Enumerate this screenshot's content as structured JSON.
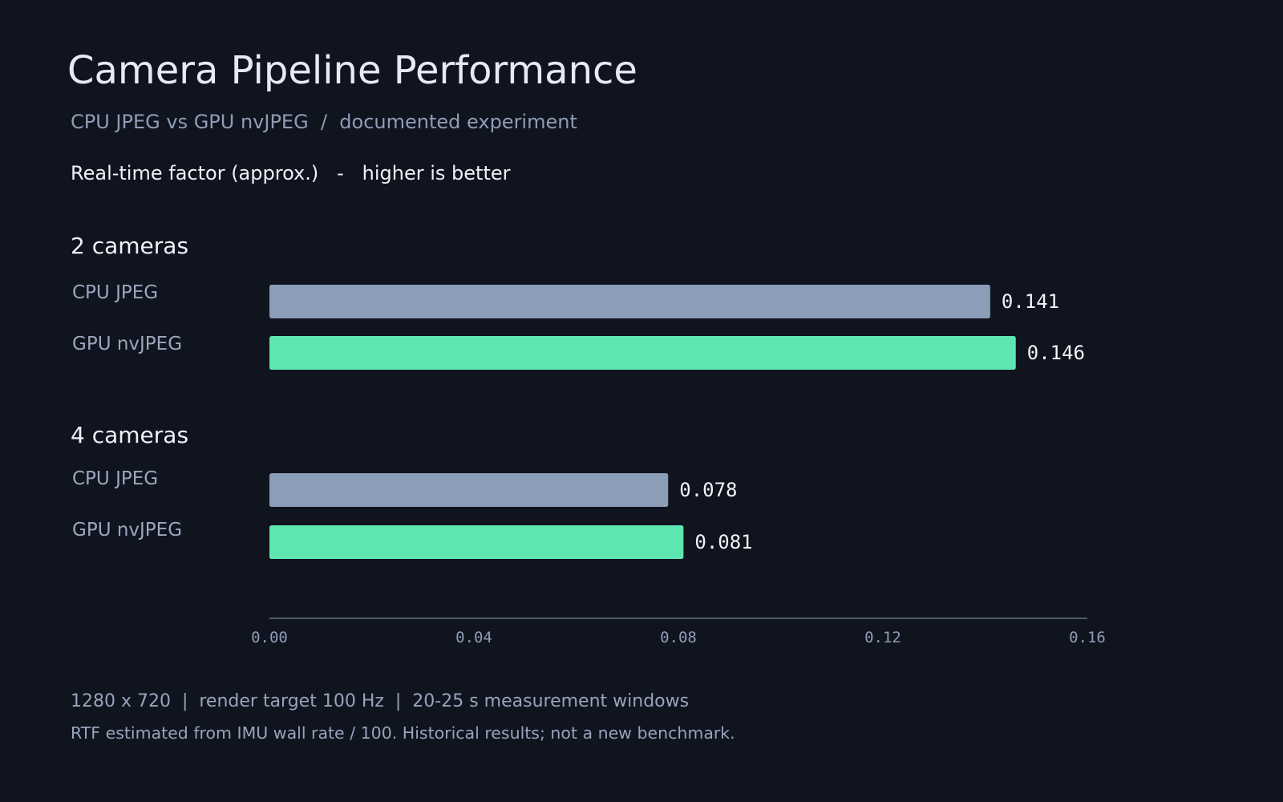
{
  "title": "Camera Pipeline Performance",
  "subtitle": "CPU JPEG vs GPU nvJPEG  /  documented experiment",
  "metric_label": "Real-time factor (approx.)   -   higher is better",
  "footer": {
    "line1": "1280 x 720  |  render target 100 Hz  |  20-25 s measurement windows",
    "line2": "RTF estimated from IMU wall rate / 100. Historical results; not a new benchmark."
  },
  "colors": {
    "background": "#10141f",
    "cpu_bar": "#8c9db8",
    "gpu_bar": "#5ee6b0",
    "value_text": "#f1f4f9",
    "tick_text": "#8f9db5",
    "axis_line": "#8f9db5"
  },
  "chart_data": {
    "type": "bar",
    "orientation": "horizontal",
    "xlim": [
      0,
      0.16
    ],
    "ticks": [
      "0.00",
      "0.04",
      "0.08",
      "0.12",
      "0.16"
    ],
    "tick_values": [
      0,
      0.04,
      0.08,
      0.12,
      0.16
    ],
    "grid": false,
    "groups": [
      {
        "name": "2 cameras",
        "bars": [
          {
            "label": "CPU JPEG",
            "value": 0.141,
            "value_label": "0.141",
            "series": "cpu"
          },
          {
            "label": "GPU nvJPEG",
            "value": 0.146,
            "value_label": "0.146",
            "series": "gpu"
          }
        ]
      },
      {
        "name": "4 cameras",
        "bars": [
          {
            "label": "CPU JPEG",
            "value": 0.078,
            "value_label": "0.078",
            "series": "cpu"
          },
          {
            "label": "GPU nvJPEG",
            "value": 0.081,
            "value_label": "0.081",
            "series": "gpu"
          }
        ]
      }
    ]
  }
}
